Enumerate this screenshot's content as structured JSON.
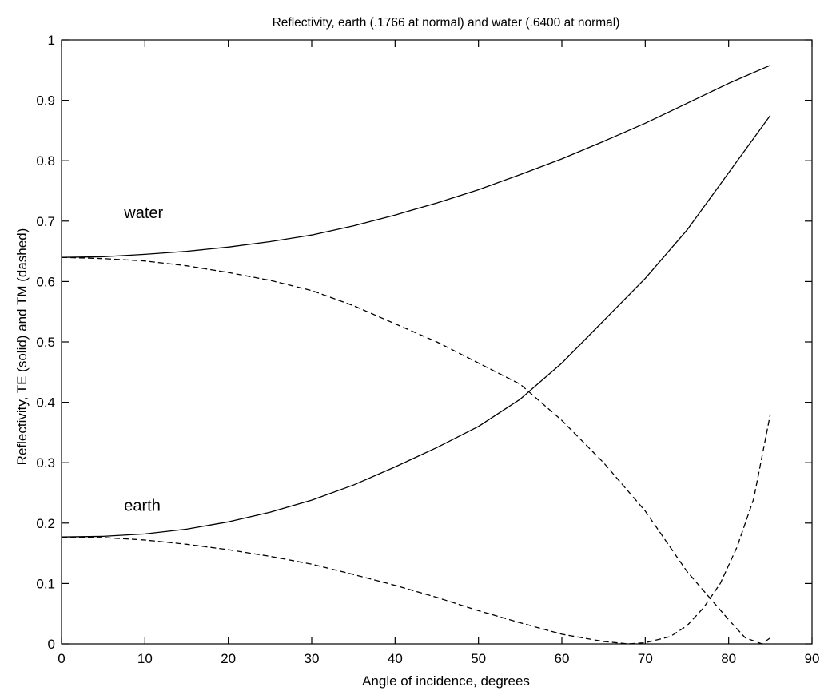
{
  "chart_data": {
    "type": "line",
    "title": "Reflectivity, earth (.1766 at normal) and water (.6400 at normal)",
    "xlabel": "Angle of incidence, degrees",
    "ylabel": "Reflectivity, TE (solid) and TM (dashed)",
    "xlim": [
      0,
      90
    ],
    "ylim": [
      0,
      1
    ],
    "xticks": [
      "0",
      "10",
      "20",
      "30",
      "40",
      "50",
      "60",
      "70",
      "80",
      "90"
    ],
    "yticks": [
      "0",
      "0.1",
      "0.2",
      "0.3",
      "0.4",
      "0.5",
      "0.6",
      "0.7",
      "0.8",
      "0.9",
      "1"
    ],
    "grid": false,
    "line_color": "#000000",
    "annotations": [
      {
        "text": "water",
        "x": 7.5,
        "y": 0.705
      },
      {
        "text": "earth",
        "x": 7.5,
        "y": 0.22
      }
    ],
    "series": [
      {
        "style": "solid",
        "x": [
          0,
          5,
          10,
          15,
          20,
          25,
          30,
          35,
          40,
          45,
          50,
          55,
          60,
          65,
          70,
          75,
          80,
          85
        ],
        "y": [
          0.64,
          0.641,
          0.645,
          0.65,
          0.657,
          0.666,
          0.677,
          0.692,
          0.71,
          0.73,
          0.752,
          0.777,
          0.803,
          0.832,
          0.862,
          0.895,
          0.928,
          0.958
        ]
      },
      {
        "style": "dashed",
        "x": [
          0,
          5,
          10,
          15,
          20,
          25,
          30,
          35,
          40,
          45,
          50,
          55,
          60,
          65,
          70,
          75,
          80,
          82,
          84,
          85
        ],
        "y": [
          0.64,
          0.638,
          0.634,
          0.626,
          0.615,
          0.602,
          0.585,
          0.56,
          0.53,
          0.5,
          0.465,
          0.43,
          0.37,
          0.3,
          0.22,
          0.12,
          0.04,
          0.01,
          0,
          0.01
        ]
      },
      {
        "style": "solid",
        "x": [
          0,
          5,
          10,
          15,
          20,
          25,
          30,
          35,
          40,
          45,
          50,
          55,
          60,
          65,
          70,
          75,
          80,
          85
        ],
        "y": [
          0.177,
          0.178,
          0.182,
          0.19,
          0.202,
          0.218,
          0.238,
          0.263,
          0.293,
          0.325,
          0.36,
          0.405,
          0.465,
          0.535,
          0.605,
          0.685,
          0.78,
          0.875
        ]
      },
      {
        "style": "dashed",
        "x": [
          0,
          5,
          10,
          15,
          20,
          25,
          30,
          35,
          40,
          45,
          50,
          55,
          60,
          65,
          68,
          70,
          73,
          75,
          77,
          79,
          81,
          83,
          85
        ],
        "y": [
          0.177,
          0.176,
          0.172,
          0.165,
          0.156,
          0.145,
          0.132,
          0.115,
          0.097,
          0.077,
          0.055,
          0.035,
          0.016,
          0.004,
          0,
          0.002,
          0.012,
          0.03,
          0.06,
          0.1,
          0.16,
          0.24,
          0.38
        ]
      }
    ]
  }
}
